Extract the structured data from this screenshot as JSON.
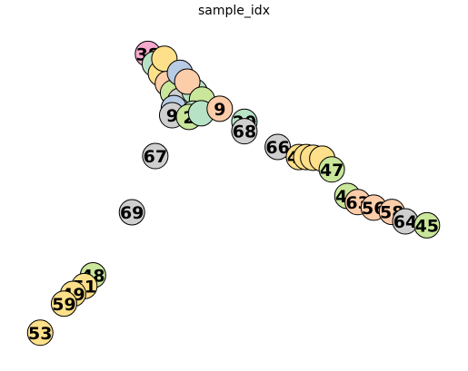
{
  "chart_data": {
    "type": "scatter",
    "title": "sample_idx",
    "xlabel": "",
    "ylabel": "",
    "axes": "off",
    "grid": false,
    "xlim": [
      0,
      100
    ],
    "ylim": [
      0,
      100
    ],
    "points": [
      {
        "label": "38",
        "x": 30.0,
        "y": 92.4,
        "color": "#f4a9cd"
      },
      {
        "label": "",
        "x": 31.6,
        "y": 89.3,
        "color": "#b8e2c5"
      },
      {
        "label": "",
        "x": 33.0,
        "y": 86.4,
        "color": "#ffe08a"
      },
      {
        "label": "",
        "x": 34.6,
        "y": 83.3,
        "color": "#fdcdaa"
      },
      {
        "label": "",
        "x": 35.8,
        "y": 80.5,
        "color": "#c9e69b"
      },
      {
        "label": "",
        "x": 37.5,
        "y": 78.1,
        "color": "#cfcfcf"
      },
      {
        "label": "",
        "x": 33.8,
        "y": 90.9,
        "color": "#ffe08a"
      },
      {
        "label": "",
        "x": 37.4,
        "y": 86.6,
        "color": "#b8cbe4"
      },
      {
        "label": "",
        "x": 40.8,
        "y": 80.8,
        "color": "#b8e2c5"
      },
      {
        "label": "",
        "x": 39.1,
        "y": 83.9,
        "color": "#fdcdaa"
      },
      {
        "label": "",
        "x": 42.5,
        "y": 78.4,
        "color": "#c9e69b"
      },
      {
        "label": "",
        "x": 36.0,
        "y": 75.8,
        "color": "#b8cbe4"
      },
      {
        "label": "",
        "x": 40.5,
        "y": 74.1,
        "color": "#b8e2c5"
      },
      {
        "label": "9",
        "x": 35.6,
        "y": 73.6,
        "color": "#cfcfcf"
      },
      {
        "label": "2",
        "x": 39.5,
        "y": 73.1,
        "color": "#c9e69b"
      },
      {
        "label": "",
        "x": 42.3,
        "y": 74.2,
        "color": "#b8e2c5"
      },
      {
        "label": "9",
        "x": 46.6,
        "y": 75.6,
        "color": "#fdcdaa"
      },
      {
        "label": "20",
        "x": 52.3,
        "y": 71.6,
        "color": "#b8e2c5"
      },
      {
        "label": "68",
        "x": 52.3,
        "y": 68.7,
        "color": "#cfcfcf"
      },
      {
        "label": "67",
        "x": 31.7,
        "y": 61.1,
        "color": "#cfcfcf"
      },
      {
        "label": "66",
        "x": 60.0,
        "y": 63.9,
        "color": "#cfcfcf"
      },
      {
        "label": "46",
        "x": 64.9,
        "y": 60.8,
        "color": "#ffe08a"
      },
      {
        "label": "",
        "x": 66.6,
        "y": 60.8,
        "color": "#ffe08a"
      },
      {
        "label": "",
        "x": 68.2,
        "y": 60.6,
        "color": "#ffe08a"
      },
      {
        "label": "",
        "x": 70.3,
        "y": 60.3,
        "color": "#ffe08a"
      },
      {
        "label": "47",
        "x": 72.5,
        "y": 57.0,
        "color": "#c9e69b"
      },
      {
        "label": "44",
        "x": 76.1,
        "y": 48.9,
        "color": "#c9e69b"
      },
      {
        "label": "63",
        "x": 78.5,
        "y": 47.0,
        "color": "#fdcdaa"
      },
      {
        "label": "56",
        "x": 82.2,
        "y": 45.3,
        "color": "#fdcdaa"
      },
      {
        "label": "58",
        "x": 86.4,
        "y": 44.0,
        "color": "#fdcdaa"
      },
      {
        "label": "64",
        "x": 89.5,
        "y": 41.1,
        "color": "#cfcfcf"
      },
      {
        "label": "45",
        "x": 94.5,
        "y": 39.9,
        "color": "#c9e69b"
      },
      {
        "label": "69",
        "x": 26.3,
        "y": 43.9,
        "color": "#cfcfcf"
      },
      {
        "label": "48",
        "x": 17.3,
        "y": 24.6,
        "color": "#c9e69b"
      },
      {
        "label": "51",
        "x": 15.3,
        "y": 21.3,
        "color": "#ffe08a"
      },
      {
        "label": "49",
        "x": 12.7,
        "y": 18.9,
        "color": "#ffe08a"
      },
      {
        "label": "59",
        "x": 10.6,
        "y": 15.9,
        "color": "#ffe08a"
      },
      {
        "label": "53",
        "x": 5.1,
        "y": 7.0,
        "color": "#ffe08a"
      }
    ]
  }
}
